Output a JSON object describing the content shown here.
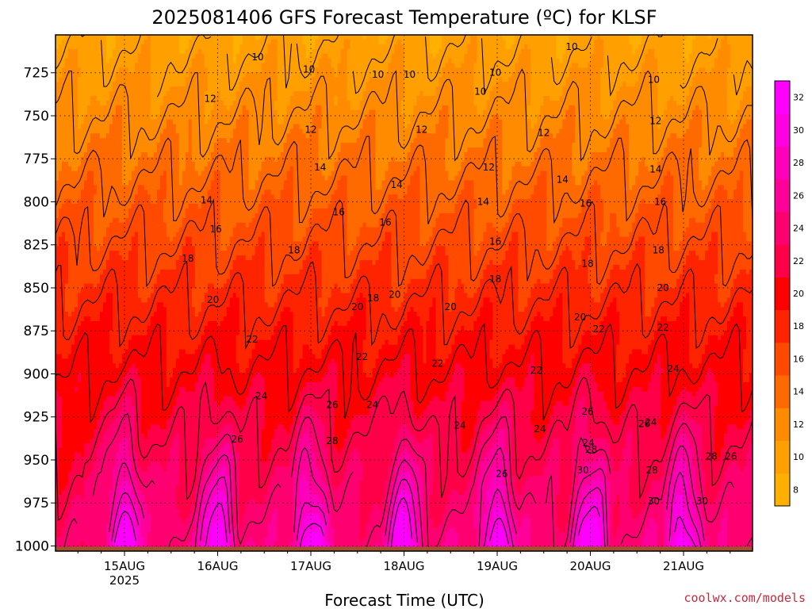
{
  "chart_data": {
    "type": "heatmap",
    "title": "2025081406 GFS Forecast Temperature (ºC) for KLSF",
    "xlabel": "Forecast Time (UTC)",
    "ylabel": "",
    "x_ticks": [
      "15AUG",
      "16AUG",
      "17AUG",
      "18AUG",
      "19AUG",
      "20AUG",
      "21AUG"
    ],
    "x_tick_year": "2025",
    "x_range": [
      "2025-08-14 06",
      "2025-08-21 19"
    ],
    "y_ticks": [
      725,
      750,
      775,
      800,
      825,
      850,
      875,
      900,
      925,
      950,
      975,
      1000
    ],
    "y_range_hpa": [
      1003,
      703
    ],
    "y_scale": "inverted pressure (hPa)",
    "grid": true,
    "colorbar": {
      "levels": [
        8,
        10,
        12,
        14,
        16,
        18,
        20,
        22,
        24,
        26,
        28,
        30,
        32
      ],
      "colors": [
        "#ffb000",
        "#ffa000",
        "#ff8c00",
        "#ff6a00",
        "#ff4a00",
        "#ff2400",
        "#ff0000",
        "#ff0048",
        "#ff0070",
        "#ff0098",
        "#ff00bc",
        "#ff00e0",
        "#ff00ff"
      ]
    },
    "contour_levels": [
      10,
      12,
      14,
      16,
      18,
      20,
      22,
      24,
      26,
      28,
      30
    ],
    "surface_color": "#a0522d",
    "contour_labels": [
      {
        "t": 1.43,
        "p": 716,
        "text": "10"
      },
      {
        "t": 1.98,
        "p": 723,
        "text": "10"
      },
      {
        "t": 2.72,
        "p": 726,
        "text": "10"
      },
      {
        "t": 3.06,
        "p": 726,
        "text": "10"
      },
      {
        "t": 3.82,
        "p": 736,
        "text": "10"
      },
      {
        "t": 3.98,
        "p": 725,
        "text": "10"
      },
      {
        "t": 4.8,
        "p": 710,
        "text": "10"
      },
      {
        "t": 5.68,
        "p": 729,
        "text": "10"
      },
      {
        "t": 0.92,
        "p": 740,
        "text": "12"
      },
      {
        "t": 2.0,
        "p": 758,
        "text": "12"
      },
      {
        "t": 3.19,
        "p": 758,
        "text": "12"
      },
      {
        "t": 3.91,
        "p": 780,
        "text": "12"
      },
      {
        "t": 4.5,
        "p": 760,
        "text": "12"
      },
      {
        "t": 5.7,
        "p": 753,
        "text": "12"
      },
      {
        "t": 0.88,
        "p": 799,
        "text": "14"
      },
      {
        "t": 2.1,
        "p": 780,
        "text": "14"
      },
      {
        "t": 2.92,
        "p": 790,
        "text": "14"
      },
      {
        "t": 3.85,
        "p": 800,
        "text": "14"
      },
      {
        "t": 4.7,
        "p": 787,
        "text": "14"
      },
      {
        "t": 5.7,
        "p": 781,
        "text": "14"
      },
      {
        "t": 0.98,
        "p": 816,
        "text": "16"
      },
      {
        "t": 2.3,
        "p": 806,
        "text": "16"
      },
      {
        "t": 2.8,
        "p": 812,
        "text": "16"
      },
      {
        "t": 3.98,
        "p": 823,
        "text": "16"
      },
      {
        "t": 4.95,
        "p": 801,
        "text": "16"
      },
      {
        "t": 5.75,
        "p": 800,
        "text": "16"
      },
      {
        "t": 0.68,
        "p": 833,
        "text": "18"
      },
      {
        "t": 1.82,
        "p": 828,
        "text": "18"
      },
      {
        "t": 2.67,
        "p": 856,
        "text": "18"
      },
      {
        "t": 3.98,
        "p": 845,
        "text": "18"
      },
      {
        "t": 4.97,
        "p": 836,
        "text": "18"
      },
      {
        "t": 5.73,
        "p": 828,
        "text": "18"
      },
      {
        "t": 0.95,
        "p": 857,
        "text": "20"
      },
      {
        "t": 2.5,
        "p": 861,
        "text": "20"
      },
      {
        "t": 2.9,
        "p": 854,
        "text": "20"
      },
      {
        "t": 3.5,
        "p": 861,
        "text": "20"
      },
      {
        "t": 4.89,
        "p": 867,
        "text": "20"
      },
      {
        "t": 5.78,
        "p": 850,
        "text": "20"
      },
      {
        "t": 1.37,
        "p": 880,
        "text": "22"
      },
      {
        "t": 2.55,
        "p": 890,
        "text": "22"
      },
      {
        "t": 3.36,
        "p": 894,
        "text": "22"
      },
      {
        "t": 4.42,
        "p": 898,
        "text": "22"
      },
      {
        "t": 5.09,
        "p": 874,
        "text": "22"
      },
      {
        "t": 5.78,
        "p": 873,
        "text": "22"
      },
      {
        "t": 1.47,
        "p": 913,
        "text": "24"
      },
      {
        "t": 2.66,
        "p": 918,
        "text": "24"
      },
      {
        "t": 3.6,
        "p": 930,
        "text": "24"
      },
      {
        "t": 4.46,
        "p": 932,
        "text": "24"
      },
      {
        "t": 4.98,
        "p": 940,
        "text": "24"
      },
      {
        "t": 5.65,
        "p": 928,
        "text": "24"
      },
      {
        "t": 5.89,
        "p": 897,
        "text": "24"
      },
      {
        "t": 1.21,
        "p": 938,
        "text": "26"
      },
      {
        "t": 2.23,
        "p": 918,
        "text": "26"
      },
      {
        "t": 4.05,
        "p": 958,
        "text": "26"
      },
      {
        "t": 4.97,
        "p": 922,
        "text": "26"
      },
      {
        "t": 5.58,
        "p": 929,
        "text": "26"
      },
      {
        "t": 6.51,
        "p": 948,
        "text": "26"
      },
      {
        "t": 2.23,
        "p": 939,
        "text": "28"
      },
      {
        "t": 5.01,
        "p": 944,
        "text": "28"
      },
      {
        "t": 5.66,
        "p": 956,
        "text": "28"
      },
      {
        "t": 6.3,
        "p": 948,
        "text": "28"
      },
      {
        "t": 4.92,
        "p": 956,
        "text": "30"
      },
      {
        "t": 5.68,
        "p": 974,
        "text": "30"
      },
      {
        "t": 6.2,
        "p": 974,
        "text": "30"
      }
    ]
  },
  "footer": {
    "credit": "coolwx.com/models"
  }
}
